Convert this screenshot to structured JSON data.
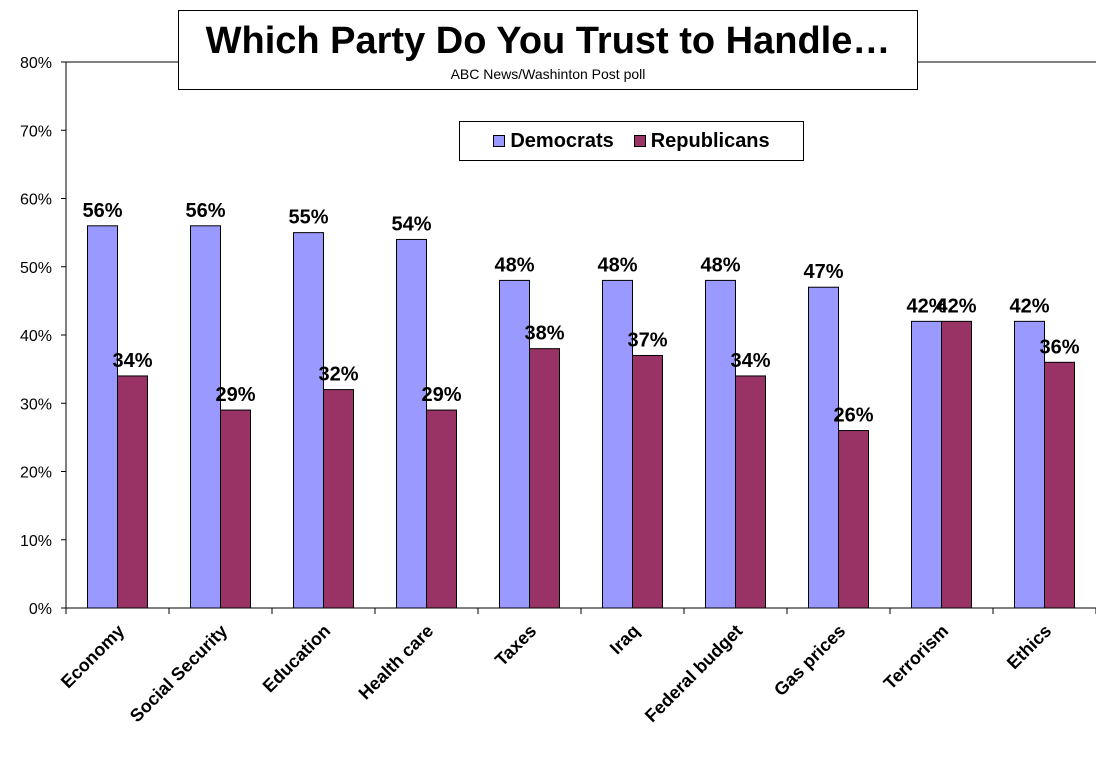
{
  "chart_data": {
    "type": "bar",
    "title": "Which Party Do You Trust to Handle…",
    "subtitle": "ABC News/Washinton Post poll",
    "categories": [
      "Economy",
      "Social Security",
      "Education",
      "Health care",
      "Taxes",
      "Iraq",
      "Federal budget",
      "Gas prices",
      "Terrorism",
      "Ethics"
    ],
    "series": [
      {
        "name": "Democrats",
        "color": "#9999ff",
        "values": [
          56,
          56,
          55,
          54,
          48,
          48,
          48,
          47,
          42,
          42
        ]
      },
      {
        "name": "Republicans",
        "color": "#993366",
        "values": [
          34,
          29,
          32,
          29,
          38,
          37,
          34,
          26,
          42,
          36
        ]
      }
    ],
    "data_labels": {
      "Democrats": [
        "56%",
        "56%",
        "55%",
        "54%",
        "48%",
        "48%",
        "48%",
        "47%",
        "42%",
        "42%"
      ],
      "Republicans": [
        "34%",
        "29%",
        "32%",
        "29%",
        "38%",
        "37%",
        "34%",
        "26%",
        "42%",
        "36%"
      ]
    },
    "ylim": [
      0,
      80
    ],
    "y_ticks": [
      "0%",
      "10%",
      "20%",
      "30%",
      "40%",
      "50%",
      "60%",
      "70%",
      "80%"
    ],
    "xlabel": "",
    "ylabel": "",
    "grid": false,
    "legend_position": "top-right"
  }
}
